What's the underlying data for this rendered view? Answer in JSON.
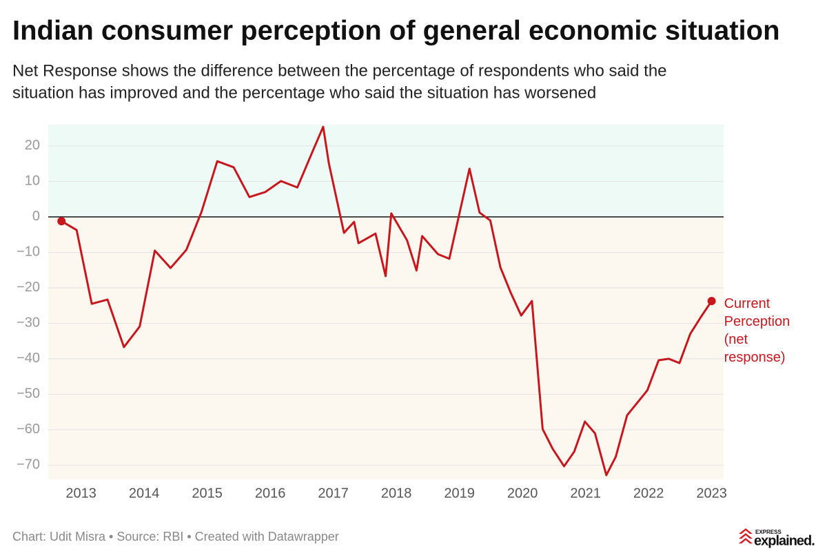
{
  "chart_data": {
    "type": "line",
    "title": "Indian consumer perception of general economic situation",
    "subtitle": [
      "Net Response shows the difference between the percentage of respondents who said the",
      "situation has improved and the percentage who said the situation has worsened"
    ],
    "x": [
      2012.69,
      2012.93,
      2013.17,
      2013.42,
      2013.68,
      2013.93,
      2014.17,
      2014.42,
      2014.67,
      2014.91,
      2015.16,
      2015.42,
      2015.67,
      2015.92,
      2016.17,
      2016.43,
      2016.68,
      2016.84,
      2016.93,
      2017.17,
      2017.33,
      2017.4,
      2017.67,
      2017.83,
      2017.92,
      2018.17,
      2018.32,
      2018.41,
      2018.66,
      2018.84,
      2019.16,
      2019.32,
      2019.49,
      2019.65,
      2019.81,
      2019.98,
      2020.15,
      2020.32,
      2020.48,
      2020.66,
      2020.82,
      2020.99,
      2021.15,
      2021.33,
      2021.48,
      2021.66,
      2021.82,
      2021.98,
      2022.16,
      2022.32,
      2022.49,
      2022.66,
      2022.83,
      2023.0
    ],
    "series": [
      {
        "name": "Net response",
        "color": "#c8161d",
        "values": [
          -1.2,
          -3.7,
          -24.5,
          -23.3,
          -36.7,
          -30.9,
          -9.5,
          -14.4,
          -9.3,
          1.4,
          15.7,
          14.0,
          5.6,
          7.0,
          10.1,
          8.3,
          18.8,
          25.4,
          15.1,
          -4.5,
          -1.4,
          -7.4,
          -4.7,
          -16.7,
          1.0,
          -6.6,
          -15.1,
          -5.4,
          -10.5,
          -11.8,
          13.6,
          1.2,
          -1.0,
          -14.2,
          -21.2,
          -27.8,
          -23.7,
          -59.8,
          -65.4,
          -70.3,
          -66.2,
          -57.7,
          -61.0,
          -72.8,
          -67.6,
          -55.9,
          -52.4,
          -48.9,
          -40.4,
          -40.0,
          -41.2,
          -33.0,
          -28.2,
          -23.7
        ]
      }
    ],
    "xlim": [
      2012.48,
      2023.19
    ],
    "xticks": [
      2013,
      2014,
      2015,
      2016,
      2017,
      2018,
      2019,
      2020,
      2021,
      2022,
      2023
    ],
    "ylim": [
      -74,
      26
    ],
    "yticks": [
      20,
      10,
      0,
      {
        "value": -10,
        "label": "−10"
      },
      {
        "value": -20,
        "label": "−20"
      },
      {
        "value": -30,
        "label": "−30"
      },
      {
        "value": -40,
        "label": "−40"
      },
      {
        "value": -50,
        "label": "−50"
      },
      {
        "value": -60,
        "label": "−60"
      },
      {
        "value": -70,
        "label": "−70"
      }
    ],
    "grid": true,
    "positive_color": "#eefaf5",
    "negative_color": "#fdf8ef",
    "highlight_endpoints": true,
    "annotation": [
      "Current",
      "Perception",
      "(net",
      "response)"
    ],
    "footer": "Chart: Udit Misra • Source: RBI • Created with Datawrapper",
    "logo": {
      "small": "EXPRESS",
      "big": "explained."
    }
  }
}
